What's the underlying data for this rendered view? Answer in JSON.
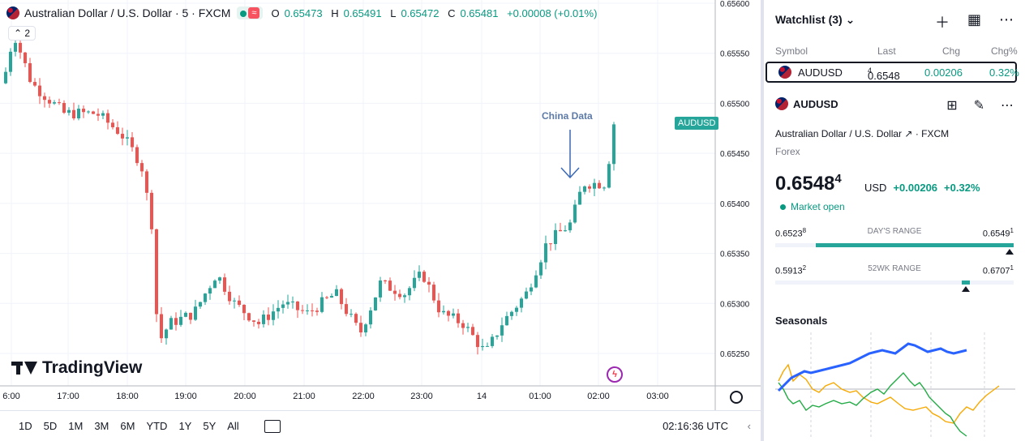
{
  "legend": {
    "title": "Australian Dollar / U.S. Dollar · 5 · FXCM",
    "open_k": "O",
    "open": "0.65473",
    "high_k": "H",
    "high": "0.65491",
    "low_k": "L",
    "low": "0.65472",
    "close_k": "C",
    "close": "0.65481",
    "change": "+0.00008 (+0.01%)",
    "indicators_count": "2"
  },
  "chart": {
    "price_ticks": [
      "0.65600",
      "0.65550",
      "0.65500",
      "0.65450",
      "0.65400",
      "0.65350",
      "0.65300",
      "0.65250"
    ],
    "time_ticks": [
      "6:00",
      "17:00",
      "18:00",
      "19:00",
      "20:00",
      "21:00",
      "22:00",
      "23:00",
      "14",
      "01:00",
      "02:00",
      "03:00"
    ],
    "price_tag": "AUDUSD",
    "annotation": "China Data",
    "logo": "TradingView",
    "up_color": "#26a69a",
    "down_color": "#ef5350"
  },
  "bottom": {
    "ranges": [
      "1D",
      "5D",
      "1M",
      "3M",
      "6M",
      "YTD",
      "1Y",
      "5Y",
      "All"
    ],
    "utc": "02:16:36 UTC"
  },
  "watchlist": {
    "title": "Watchlist (3)",
    "cols": [
      "Symbol",
      "Last",
      "Chg",
      "Chg%"
    ],
    "row": {
      "symbol": "AUDUSD",
      "last": "0.6548",
      "last_sup": "4",
      "chg": "0.00206",
      "chgp": "0.32%"
    }
  },
  "symbol": {
    "name": "AUDUSD",
    "desc": "Australian Dollar / U.S. Dollar",
    "venue": "· FXCM",
    "type": "Forex",
    "price": "0.6548",
    "price_sup": "4",
    "currency": "USD",
    "change": "+0.00206",
    "change_pct": "+0.32%",
    "market": "Market open",
    "day_low": "0.6523",
    "day_low_sup": "8",
    "day_label": "DAY'S RANGE",
    "day_high": "0.6549",
    "day_high_sup": "1",
    "wk_low": "0.5913",
    "wk_low_sup": "2",
    "wk_label": "52WK RANGE",
    "wk_high": "0.6707",
    "wk_high_sup": "1",
    "seasonals": "Seasonals"
  }
}
